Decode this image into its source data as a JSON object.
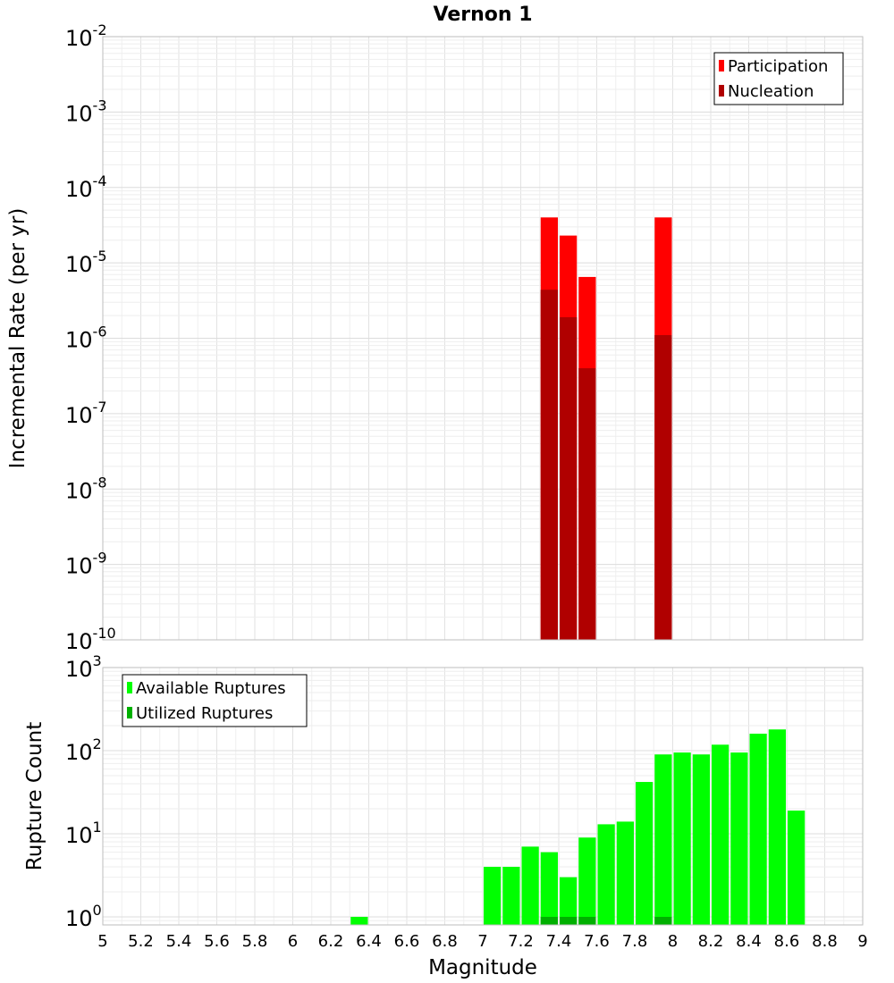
{
  "chart_data": [
    {
      "type": "bar",
      "title": "Vernon 1",
      "xlabel": "Magnitude",
      "ylabel": "Incremental Rate (per yr)",
      "yscale": "log",
      "xlim": [
        5,
        9
      ],
      "ylim": [
        1e-10,
        0.01
      ],
      "ytick_exponents": [
        -10,
        -9,
        -8,
        -7,
        -6,
        -5,
        -4,
        -3,
        -2
      ],
      "bin_width": 0.1,
      "grid": true,
      "legend_position": "top-right",
      "series": [
        {
          "name": "Participation",
          "color": "#ff0000",
          "x": [
            7.35,
            7.45,
            7.55,
            7.95
          ],
          "values": [
            4e-05,
            2.3e-05,
            6.5e-06,
            4e-05
          ]
        },
        {
          "name": "Nucleation",
          "color": "#b00000",
          "x": [
            7.35,
            7.45,
            7.55,
            7.95
          ],
          "values": [
            4.4e-06,
            1.9e-06,
            4e-07,
            1.1e-06
          ]
        }
      ]
    },
    {
      "type": "bar",
      "xlabel": "Magnitude",
      "ylabel": "Rupture Count",
      "yscale": "log",
      "xlim": [
        5,
        9
      ],
      "ylim": [
        0.8,
        1000
      ],
      "ytick_exponents": [
        0,
        1,
        2,
        3
      ],
      "bin_width": 0.1,
      "grid": true,
      "legend_position": "top-left",
      "xticks": [
        "5",
        "5.2",
        "5.4",
        "5.6",
        "5.8",
        "6",
        "6.2",
        "6.4",
        "6.6",
        "6.8",
        "7",
        "7.2",
        "7.4",
        "7.6",
        "7.8",
        "8",
        "8.2",
        "8.4",
        "8.6",
        "8.8",
        "9"
      ],
      "series": [
        {
          "name": "Available Ruptures",
          "color": "#00ff00",
          "x": [
            6.35,
            7.05,
            7.15,
            7.25,
            7.35,
            7.45,
            7.55,
            7.65,
            7.75,
            7.85,
            7.95,
            8.05,
            8.15,
            8.25,
            8.35,
            8.45,
            8.55,
            8.65
          ],
          "values": [
            1,
            4,
            4,
            7,
            6,
            3,
            9,
            13,
            14,
            42,
            90,
            95,
            90,
            118,
            95,
            160,
            180,
            19
          ]
        },
        {
          "name": "Utilized Ruptures",
          "color": "#00b000",
          "x": [
            7.35,
            7.45,
            7.55,
            7.95
          ],
          "values": [
            1,
            1,
            1,
            1
          ]
        }
      ]
    }
  ]
}
